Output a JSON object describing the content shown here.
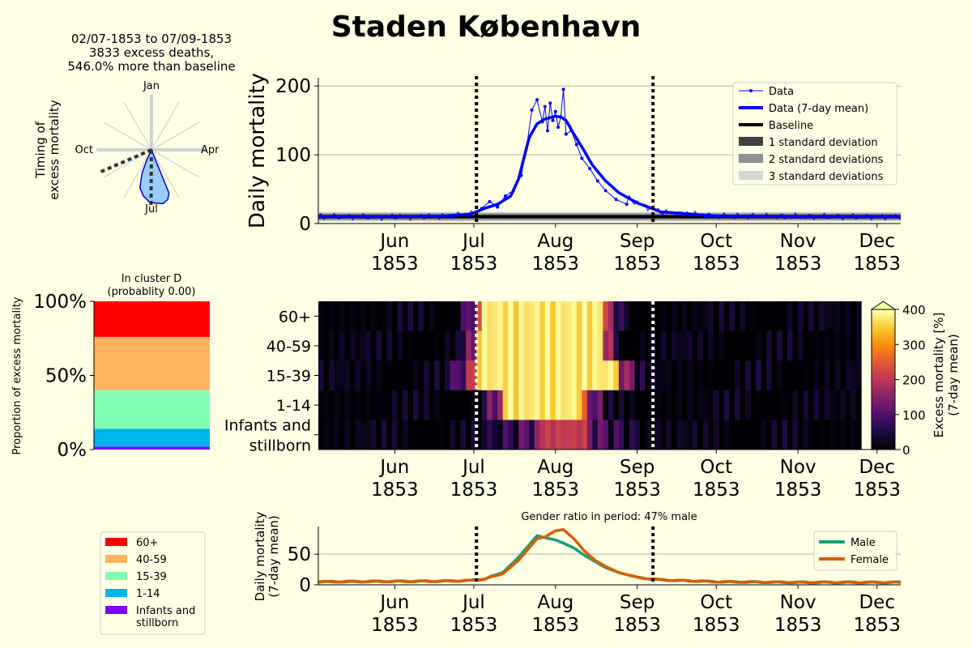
{
  "figure": {
    "title": "Staden København",
    "background": "#ffffe4"
  },
  "month_ticks": [
    {
      "month": "Jun",
      "year": "1853",
      "date": "1853-06-01"
    },
    {
      "month": "Jul",
      "year": "1853",
      "date": "1853-07-01"
    },
    {
      "month": "Aug",
      "year": "1853",
      "date": "1853-08-01"
    },
    {
      "month": "Sep",
      "year": "1853",
      "date": "1853-09-01"
    },
    {
      "month": "Oct",
      "year": "1853",
      "date": "1853-10-01"
    },
    {
      "month": "Nov",
      "year": "1853",
      "date": "1853-11-01"
    },
    {
      "month": "Dec",
      "year": "1853",
      "date": "1853-12-01"
    }
  ],
  "period": {
    "start": "1853-07-02",
    "end": "1853-09-07"
  },
  "chart_data": [
    {
      "id": "polar-timing",
      "type": "polar",
      "title_lines": [
        "02/07-1853 to 07/09-1853",
        "3833 excess deaths,",
        "546.0% more than baseline"
      ],
      "ylabel_lines": [
        "Timing of",
        "excess mortality"
      ],
      "direction_labels": {
        "top": "Jan",
        "right": "Apr",
        "bottom": "Jul",
        "left": "Oct"
      },
      "start_day_of_year": 183,
      "end_day_of_year": 250,
      "shape_angles_deg": [
        158,
        162,
        168,
        175,
        182,
        190,
        197,
        202,
        205
      ],
      "fill_color": "#99ccff",
      "edge_color": "#0000cc"
    },
    {
      "id": "daily-mortality",
      "type": "line",
      "ylabel": "Daily mortality",
      "xlim": [
        "1853-05-03",
        "1853-12-10"
      ],
      "ylim": [
        0,
        212
      ],
      "yticks": [
        0,
        100,
        200
      ],
      "grid": true,
      "legend_position": "top-right",
      "legend": [
        "Data",
        "Data (7-day mean)",
        "Baseline",
        "1 standard deviation",
        "2 standard deviations",
        "3 standard deviations"
      ],
      "colors": {
        "data": "#0000ff",
        "mean": "#0000ff",
        "baseline": "#000000",
        "sd1": "#404040",
        "sd2": "#909090",
        "sd3": "#d4d8d4"
      },
      "baseline": {
        "mean": 10,
        "sd1": 3,
        "sd2": 5,
        "sd3": 7
      },
      "dates_7day_mean": [
        "1853-05-03",
        "1853-06-01",
        "1853-06-20",
        "1853-06-30",
        "1853-07-05",
        "1853-07-10",
        "1853-07-15",
        "1853-07-18",
        "1853-07-20",
        "1853-07-22",
        "1853-07-25",
        "1853-07-28",
        "1853-08-01",
        "1853-08-03",
        "1853-08-05",
        "1853-08-08",
        "1853-08-12",
        "1853-08-15",
        "1853-08-20",
        "1853-08-25",
        "1853-09-01",
        "1853-09-10",
        "1853-10-01",
        "1853-11-01",
        "1853-12-10"
      ],
      "values_7day_mean": [
        10,
        10,
        11,
        14,
        22,
        28,
        40,
        65,
        95,
        125,
        145,
        152,
        156,
        155,
        150,
        130,
        105,
        85,
        62,
        45,
        30,
        17,
        11,
        10,
        10
      ],
      "daily_dates": [
        "1853-07-04",
        "1853-07-07",
        "1853-07-10",
        "1853-07-13",
        "1853-07-16",
        "1853-07-19",
        "1853-07-21",
        "1853-07-23",
        "1853-07-25",
        "1853-07-27",
        "1853-07-28",
        "1853-07-29",
        "1853-07-30",
        "1853-07-31",
        "1853-08-01",
        "1853-08-02",
        "1853-08-03",
        "1853-08-04",
        "1853-08-05",
        "1853-08-07",
        "1853-08-09",
        "1853-08-11",
        "1853-08-14",
        "1853-08-17",
        "1853-08-20",
        "1853-08-24",
        "1853-08-28"
      ],
      "daily_values": [
        22,
        32,
        24,
        40,
        48,
        70,
        110,
        165,
        180,
        148,
        170,
        135,
        175,
        150,
        163,
        140,
        155,
        195,
        130,
        135,
        115,
        95,
        80,
        62,
        48,
        35,
        28
      ]
    },
    {
      "id": "age-heatmap",
      "type": "heatmap",
      "rows": [
        "60+",
        "40-59",
        "15-39",
        "1-14",
        "Infants and stillborn"
      ],
      "row_label_lines": [
        [
          "60+"
        ],
        [
          "40-59"
        ],
        [
          "15-39"
        ],
        [
          "1-14"
        ],
        [
          "Infants and",
          "stillborn"
        ]
      ],
      "colorbar_label_lines": [
        "Excess mortality [%]",
        "(7-day mean)"
      ],
      "colorbar_ticks": [
        0,
        100,
        200,
        300,
        400
      ],
      "vmax": 400,
      "colormap": "inferno",
      "xlim": [
        "1853-05-03",
        "1853-12-10"
      ],
      "data_end": "1853-11-23",
      "peaks": [
        {
          "start": "1853-07-03",
          "end": "1853-08-18",
          "edge_days": 9
        },
        {
          "start": "1853-07-02",
          "end": "1853-08-18",
          "edge_days": 8
        },
        {
          "start": "1853-07-01",
          "end": "1853-08-23",
          "edge_days": 12
        },
        {
          "start": "1853-07-12",
          "end": "1853-08-10",
          "edge_days": 11
        },
        {
          "start": "1853-07-25",
          "end": "1853-08-12",
          "edge_days": 22,
          "peak_level": 0.55
        }
      ]
    },
    {
      "id": "age-proportion",
      "type": "bar",
      "title_lines": [
        "In cluster D",
        "(probablity 0.00)"
      ],
      "ylabel": "Proportion of excess mortality",
      "yticks": [
        "0%",
        "50%",
        "100%"
      ],
      "ylim": [
        0,
        100
      ],
      "categories": [
        "Infants and stillborn",
        "1-14",
        "15-39",
        "40-59",
        "60+"
      ],
      "values": [
        2,
        12,
        26,
        36,
        24
      ],
      "colors": [
        "#8000ff",
        "#00b4ec",
        "#80ffb4",
        "#ffb360",
        "#ff0000"
      ],
      "legend_entries": [
        "60+",
        "40-59",
        "15-39",
        "1-14",
        "Infants and stillborn"
      ],
      "legend_colors": [
        "#ff0000",
        "#ffb360",
        "#80ffb4",
        "#00b4ec",
        "#8000ff"
      ],
      "legend_label_lines": [
        [
          "60+"
        ],
        [
          "40-59"
        ],
        [
          "15-39"
        ],
        [
          "1-14"
        ],
        [
          "Infants and",
          "stillborn"
        ]
      ]
    },
    {
      "id": "gender-mortality",
      "type": "line",
      "title": "Gender ratio in period: 47% male",
      "ylabel_lines": [
        "Daily mortality",
        "(7-day mean)"
      ],
      "xlim": [
        "1853-05-03",
        "1853-12-10"
      ],
      "ylim": [
        0,
        95
      ],
      "yticks": [
        0,
        50
      ],
      "grid": true,
      "legend_position": "top-right",
      "series": [
        {
          "name": "Male",
          "color": "#1b9e77",
          "x": [
            "1853-05-03",
            "1853-06-20",
            "1853-06-30",
            "1853-07-05",
            "1853-07-12",
            "1853-07-18",
            "1853-07-22",
            "1853-07-25",
            "1853-07-28",
            "1853-08-01",
            "1853-08-04",
            "1853-08-08",
            "1853-08-12",
            "1853-08-16",
            "1853-08-20",
            "1853-08-25",
            "1853-09-01",
            "1853-09-10",
            "1853-10-01",
            "1853-11-01",
            "1853-12-10"
          ],
          "values": [
            5,
            6,
            7,
            10,
            20,
            45,
            65,
            80,
            77,
            73,
            68,
            60,
            48,
            38,
            28,
            20,
            12,
            8,
            5,
            4,
            4
          ]
        },
        {
          "name": "Female",
          "color": "#d95f02",
          "x": [
            "1853-05-03",
            "1853-06-20",
            "1853-06-30",
            "1853-07-05",
            "1853-07-12",
            "1853-07-18",
            "1853-07-22",
            "1853-07-25",
            "1853-07-28",
            "1853-08-01",
            "1853-08-04",
            "1853-08-08",
            "1853-08-12",
            "1853-08-16",
            "1853-08-20",
            "1853-08-25",
            "1853-09-01",
            "1853-09-10",
            "1853-10-01",
            "1853-11-01",
            "1853-12-10"
          ],
          "values": [
            5,
            6,
            7,
            9,
            18,
            40,
            60,
            75,
            78,
            88,
            90,
            75,
            55,
            40,
            30,
            20,
            12,
            8,
            5,
            4,
            4
          ]
        }
      ]
    }
  ]
}
